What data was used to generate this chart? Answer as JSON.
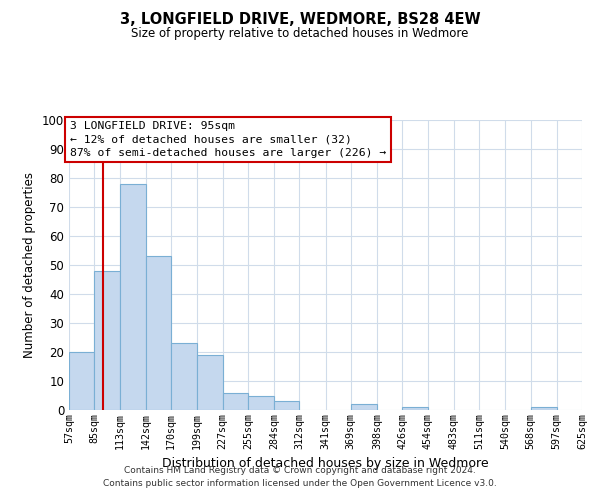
{
  "title": "3, LONGFIELD DRIVE, WEDMORE, BS28 4EW",
  "subtitle": "Size of property relative to detached houses in Wedmore",
  "xlabel": "Distribution of detached houses by size in Wedmore",
  "ylabel": "Number of detached properties",
  "bar_color": "#c5d8ee",
  "bar_edge_color": "#7aafd4",
  "background_color": "#ffffff",
  "grid_color": "#d0dcea",
  "vline_color": "#cc0000",
  "vline_x": 95,
  "bin_edges": [
    57,
    85,
    113,
    142,
    170,
    199,
    227,
    255,
    284,
    312,
    341,
    369,
    398,
    426,
    454,
    483,
    511,
    540,
    568,
    597,
    625
  ],
  "bar_heights": [
    20,
    48,
    78,
    53,
    23,
    19,
    6,
    5,
    3,
    0,
    0,
    2,
    0,
    1,
    0,
    0,
    0,
    0,
    1,
    0
  ],
  "tick_labels": [
    "57sqm",
    "85sqm",
    "113sqm",
    "142sqm",
    "170sqm",
    "199sqm",
    "227sqm",
    "255sqm",
    "284sqm",
    "312sqm",
    "341sqm",
    "369sqm",
    "398sqm",
    "426sqm",
    "454sqm",
    "483sqm",
    "511sqm",
    "540sqm",
    "568sqm",
    "597sqm",
    "625sqm"
  ],
  "ylim": [
    0,
    100
  ],
  "yticks": [
    0,
    10,
    20,
    30,
    40,
    50,
    60,
    70,
    80,
    90,
    100
  ],
  "annotation_title": "3 LONGFIELD DRIVE: 95sqm",
  "annotation_line1": "← 12% of detached houses are smaller (32)",
  "annotation_line2": "87% of semi-detached houses are larger (226) →",
  "annotation_box_color": "#ffffff",
  "annotation_box_edge": "#cc0000",
  "footer_line1": "Contains HM Land Registry data © Crown copyright and database right 2024.",
  "footer_line2": "Contains public sector information licensed under the Open Government Licence v3.0."
}
